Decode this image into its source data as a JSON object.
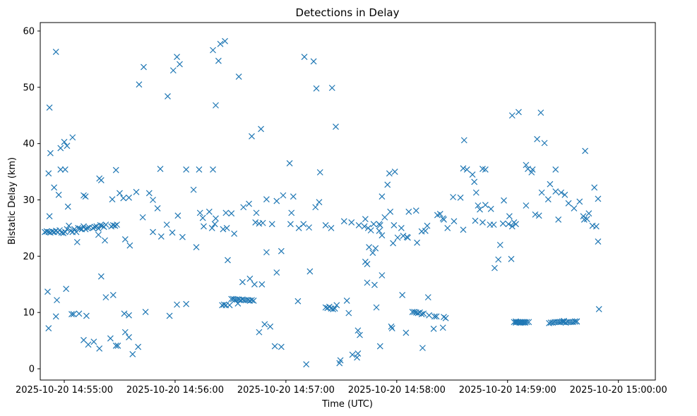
{
  "chart_data": {
    "type": "scatter",
    "title": "Detections in Delay",
    "xlabel": "Time (UTC)",
    "ylabel": "Bistatic Delay (km)",
    "x_unit": "seconds after 2025-10-20 14:54:00 UTC",
    "xlim": [
      47,
      380
    ],
    "ylim": [
      -2.0,
      61.5
    ],
    "x_ticks": [
      {
        "value": 60,
        "label": "2025-10-20 14:55:00"
      },
      {
        "value": 120,
        "label": "2025-10-20 14:56:00"
      },
      {
        "value": 180,
        "label": "2025-10-20 14:57:00"
      },
      {
        "value": 240,
        "label": "2025-10-20 14:58:00"
      },
      {
        "value": 300,
        "label": "2025-10-20 14:59:00"
      },
      {
        "value": 360,
        "label": "2025-10-20 15:00:00"
      }
    ],
    "y_ticks": [
      0,
      10,
      20,
      30,
      40,
      50,
      60
    ],
    "marker": "x",
    "color": "#1f77b4",
    "series": [
      {
        "name": "detections",
        "x": [
          49.5,
          50.5,
          51.5,
          52.5,
          53.5,
          54.5,
          55.5,
          56.5,
          57.5,
          58.5,
          59.5,
          60.5,
          61.5,
          62.5,
          63.5,
          64.5,
          65.5,
          66.5,
          67.5,
          68.5,
          69.5,
          70.5,
          71.5,
          72.5,
          73.5,
          75.5,
          76.5,
          77.5,
          78.5,
          79.5,
          80.5,
          81.5,
          82.5,
          85.5,
          86.5,
          87.5,
          88.5,
          112.5,
          115.5,
          118.5,
          121.5,
          131.5,
          133.5,
          135.5,
          138.5,
          141.5,
          147.5,
          150.5,
          163.5,
          165.5,
          167.5,
          169.5,
          172.5,
          177.5,
          182.5,
          186.5,
          189.5,
          192.5,
          198.5,
          201.5,
          204.5,
          207.5,
          211.5,
          215.5,
          219.5,
          222.5,
          224.5,
          227.5,
          230.5,
          233.5,
          236.5,
          238.5,
          242.5,
          246.5,
          250.5,
          263.5,
          265.5,
          267.5,
          270.5,
          274.5,
          282.5,
          286.5,
          290.5,
          292.5,
          297.5,
          300.5,
          302.5,
          303.5,
          304.5,
          304.5,
          305.5,
          306.5,
          307.5,
          308.5,
          309.5,
          310.5,
          311.5,
          330.5,
          331.5,
          332.5,
          333.5,
          334.5,
          335.5,
          336.5,
          337.5,
          150.5,
          151.5,
          152.5,
          153.5,
          154.5,
          155.5,
          156.5,
          157.5,
          158.5,
          159.5,
          160.5,
          161.5,
          162.5,
          201.5,
          202.5,
          203.5,
          204.5,
          205.5,
          206.5,
          248.5,
          250.5,
          252.5,
          254.5,
          257.5,
          260.5,
          261.5,
          265.5,
          266.5,
          303.5,
          304.5,
          305.5,
          306.5,
          307.5,
          308.5,
          309.5,
          322.5,
          323.5,
          324.5,
          325.5,
          326.5,
          327.5,
          328.5,
          329.5,
          145.5,
          146.5,
          147.5,
          148.5,
          149.5,
          249.5,
          251.5,
          253.5,
          327.5,
          328.5,
          330.5,
          336.5,
          337.5,
          52.0,
          55.5,
          52.5,
          51.5,
          61.5,
          60.5,
          58.0,
          62.0,
          52.0,
          51.0,
          56.0,
          61.0,
          64.0,
          65.0,
          68.0,
          72.0,
          70.5,
          76.0,
          73.0,
          79.0,
          85.0,
          88.0,
          89.0,
          95.0,
          92.5,
          95.0,
          93.0,
          100.0,
          97.0,
          51.5,
          55.5,
          58.0,
          67.0,
          80.0,
          82.5,
          86.5,
          88.0,
          92.0,
          95.0,
          99.0,
          100.5,
          103.0,
          106.0,
          108.0,
          112.0,
          116.0,
          119.0,
          121.0,
          122.5,
          126.0,
          133.0,
          140.5,
          143.5,
          144.5,
          147.0,
          154.5,
          161.5,
          166.5,
          169.5,
          182.0,
          183.0,
          190.0,
          195.0,
          196.5,
          205.0,
          207.0,
          142.0,
          140.5,
          164.0,
          167.0,
          163.0,
          175.0,
          184.0,
          193.0,
          187.0,
          213.0,
          214.0,
          219.0,
          220.0,
          223.0,
          224.0,
          225.0,
          227.0,
          228.0,
          237.0,
          237.5,
          229.0,
          243.0,
          245.0,
          257.0,
          260.0,
          265.0,
          235.0,
          236.0,
          239.0,
          232.0,
          231.0,
          230.5,
          253.5,
          255.5,
          256.5,
          276.0,
          278.0,
          276.5,
          281.0,
          282.0,
          283.0,
          284.0,
          286.5,
          288.0,
          291.0,
          302.5,
          306.0,
          316.0,
          318.0,
          320.0,
          311.0,
          313.0,
          313.5,
          310.0,
          318.5,
          317.0,
          327.5,
          329.0,
          331.0,
          326.0,
          323.0,
          342.0,
          341.5,
          343.0,
          293.0,
          295.0,
          302.0,
          296.0,
          341.0,
          346.0,
          348.0,
          349.0,
          349.5,
          171.5,
          174.0,
          177.5,
          154.0,
          156.5,
          160.5,
          165.5,
          168.5,
          102.5,
          108.0,
          110.5,
          209.5,
          191.0,
          209.0,
          216.0,
          218.5,
          219.0,
          231.0,
          104.0,
          117.0,
          121.0,
          126.0,
          224.0,
          232.0,
          228.5,
          240.5,
          243.5,
          245.5,
          254.0,
          70.5,
          71.5,
          79.0,
          80.0,
          60.0,
          64.5,
          54.5,
          57.0,
          78.5,
          82.0,
          86.0,
          90.0,
          93.0,
          95.5,
          130.0,
          124.0,
          135.0,
          140.0,
          142.0,
          146.0,
          152.0,
          148.0,
          157.0,
          160.0,
          175.0,
          178.5,
          198.0,
          196.0,
          223.0,
          226.0,
          232.0,
          238.0,
          246.0,
          251.0,
          262.0,
          265.0,
          271.0,
          276.0,
          285.0,
          288.0,
          298.0,
          301.0,
          310.0,
          315.0,
          322.0,
          326.0,
          333.0,
          336.0,
          339.0,
          344.0,
          347.0,
          349.0
        ],
        "y": [
          24.3,
          24.4,
          24.3,
          24.2,
          24.4,
          24.3,
          24.5,
          24.3,
          24.6,
          24.2,
          24.1,
          24.3,
          24.8,
          25.4,
          24.5,
          24.3,
          24.8,
          24.3,
          25.0,
          24.9,
          24.8,
          25.3,
          24.8,
          25.0,
          25.1,
          25.0,
          25.2,
          25.3,
          24.9,
          25.5,
          25.4,
          25.2,
          25.6,
          25.3,
          25.5,
          25.4,
          25.6,
          23.5,
          25.6,
          24.2,
          27.2,
          21.6,
          27.7,
          25.3,
          27.9,
          25.7,
          27.7,
          27.6,
          26.0,
          25.8,
          25.9,
          20.7,
          25.7,
          20.9,
          25.7,
          12.0,
          25.7,
          25.1,
          34.9,
          25.5,
          25.0,
          11.3,
          26.2,
          26.0,
          25.5,
          25.3,
          25.0,
          25.7,
          24.5,
          26.9,
          27.9,
          25.5,
          25.0,
          27.9,
          28.1,
          27.5,
          26.5,
          25.0,
          30.5,
          30.4,
          26.3,
          26.0,
          25.6,
          25.6,
          25.8,
          25.7,
          25.3,
          26.0,
          25.7,
          8.4,
          8.3,
          8.3,
          8.3,
          8.2,
          8.3,
          8.3,
          8.3,
          8.3,
          8.2,
          8.3,
          8.3,
          8.3,
          8.3,
          8.4,
          8.4,
          12.4,
          12.4,
          12.3,
          12.3,
          12.3,
          12.2,
          12.3,
          12.2,
          12.2,
          12.2,
          12.1,
          12.2,
          12.1,
          10.9,
          10.8,
          11.0,
          10.7,
          10.6,
          10.7,
          10.1,
          10.0,
          10.0,
          9.8,
          9.5,
          9.3,
          9.3,
          9.2,
          9.0,
          8.3,
          8.2,
          8.3,
          8.2,
          8.2,
          8.3,
          8.2,
          8.1,
          8.2,
          8.2,
          8.3,
          8.3,
          8.3,
          8.3,
          8.4,
          11.3,
          11.4,
          11.3,
          19.3,
          11.3,
          10.1,
          9.9,
          9.7,
          8.3,
          8.3,
          8.5,
          8.4,
          8.4,
          46.4,
          56.3,
          38.3,
          34.7,
          39.6,
          35.4,
          35.4,
          28.8,
          27.1,
          13.7,
          12.2,
          14.2,
          9.7,
          9.7,
          9.8,
          9.4,
          5.1,
          4.8,
          4.3,
          3.6,
          5.4,
          4.1,
          4.1,
          5.6,
          9.8,
          9.5,
          6.5,
          3.9,
          2.6,
          7.2,
          9.3,
          39.2,
          22.5,
          16.4,
          12.7,
          13.1,
          35.3,
          30.3,
          30.4,
          31.4,
          50.5,
          53.6,
          31.2,
          30.0,
          35.5,
          48.4,
          53.0,
          55.4,
          54.1,
          35.4,
          35.4,
          56.6,
          54.7,
          57.7,
          58.2,
          51.9,
          41.3,
          42.6,
          30.1,
          36.5,
          27.7,
          55.4,
          54.6,
          49.8,
          49.9,
          43.0,
          46.8,
          35.4,
          27.7,
          15.0,
          15.0,
          17.1,
          30.6,
          17.3,
          25.0,
          12.1,
          9.9,
          6.8,
          6.0,
          19.0,
          18.6,
          21.6,
          20.6,
          14.9,
          7.5,
          7.2,
          10.9,
          13.1,
          6.4,
          12.7,
          7.1,
          7.3,
          32.7,
          34.7,
          35.0,
          30.6,
          25.5,
          25.7,
          24.4,
          24.5,
          25.4,
          35.6,
          35.4,
          40.6,
          34.5,
          33.2,
          31.3,
          29.0,
          35.5,
          35.4,
          28.4,
          45.0,
          45.6,
          40.8,
          45.5,
          40.1,
          35.5,
          34.9,
          35.4,
          36.2,
          31.3,
          27.2,
          26.5,
          31.3,
          30.9,
          35.4,
          32.8,
          38.7,
          26.5,
          26.6,
          17.9,
          19.4,
          19.5,
          22.0,
          27.1,
          25.4,
          25.3,
          22.6,
          10.6,
          7.5,
          4.0,
          3.9,
          11.6,
          15.4,
          16.0,
          6.5,
          7.9,
          26.9,
          24.3,
          28.5,
          1.5,
          0.8,
          1.0,
          2.5,
          2.0,
          2.7,
          4.0,
          10.1,
          9.4,
          11.4,
          11.5,
          15.3,
          16.6,
          21.4,
          23.3,
          23.6,
          23.4,
          3.7,
          30.8,
          30.6,
          33.8,
          33.5,
          40.3,
          41.1,
          32.2,
          30.9,
          23.8,
          22.8,
          30.1,
          31.2,
          23.0,
          21.9,
          31.8,
          23.4,
          26.8,
          25.0,
          26.7,
          24.8,
          24.0,
          25.0,
          28.7,
          29.3,
          29.8,
          30.8,
          29.6,
          28.7,
          26.6,
          24.6,
          23.7,
          22.3,
          23.3,
          22.4,
          27.3,
          26.7,
          26.2,
          24.7,
          28.3,
          29.1,
          29.9,
          27.1,
          29.0,
          27.4,
          30.1,
          31.5,
          29.4,
          28.5,
          29.7,
          27.6,
          32.2,
          30.2
        ]
      }
    ]
  }
}
